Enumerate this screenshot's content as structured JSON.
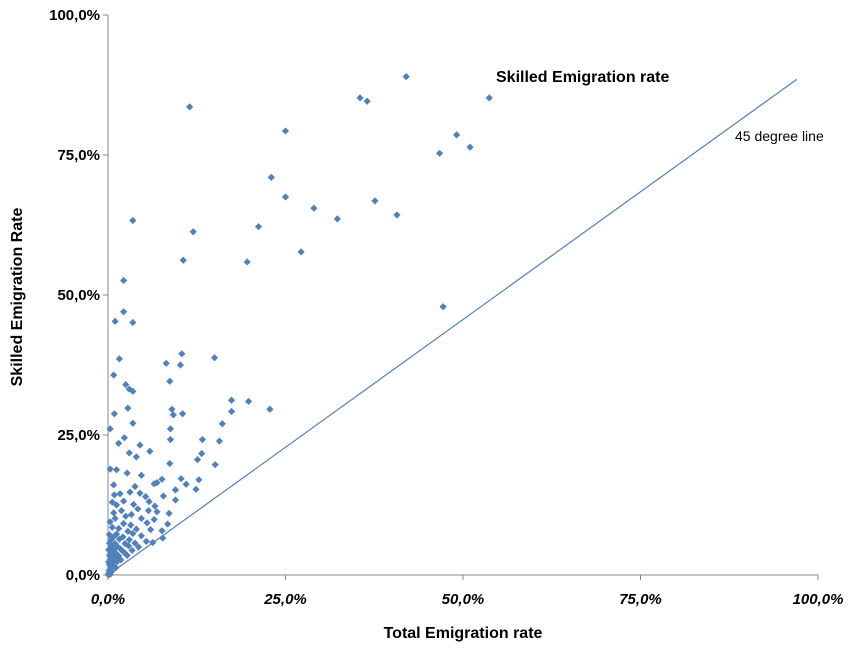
{
  "chart_data": {
    "type": "scatter",
    "title": "",
    "xlabel": "Total Emigration rate",
    "ylabel": "Skilled Emigration Rate",
    "xlim": [
      0,
      100
    ],
    "ylim": [
      0,
      100
    ],
    "x_ticks": [
      0,
      25,
      50,
      75,
      100
    ],
    "y_ticks": [
      0,
      25,
      50,
      75,
      100
    ],
    "x_tick_labels": [
      "0,0%",
      "25,0%",
      "50,0%",
      "75,0%",
      "100,0%"
    ],
    "y_tick_labels": [
      "0,0%",
      "25,0%",
      "50,0%",
      "75,0%",
      "100,0%"
    ],
    "grid": false,
    "marker_color": "#4f81bd",
    "line_color": "#4f81bd",
    "reference_line": {
      "label": "45 degree line",
      "points": [
        [
          0,
          0
        ],
        [
          97,
          88.5
        ]
      ]
    },
    "annotations": [
      {
        "text": "Skilled Emigration rate",
        "bold": true
      },
      {
        "text": "45 degree line",
        "bold": false
      }
    ],
    "series": [
      {
        "points": [
          [
            11.5,
            83.6
          ],
          [
            42,
            89
          ],
          [
            35.5,
            85.2
          ],
          [
            36.5,
            84.6
          ],
          [
            53.7,
            85.2
          ],
          [
            25,
            79.3
          ],
          [
            49.1,
            78.6
          ],
          [
            51,
            76.4
          ],
          [
            46.7,
            75.3
          ],
          [
            23,
            71
          ],
          [
            25,
            67.5
          ],
          [
            29,
            65.5
          ],
          [
            37.6,
            66.8
          ],
          [
            32.3,
            63.6
          ],
          [
            40.7,
            64.3
          ],
          [
            3.5,
            63.3
          ],
          [
            12,
            61.3
          ],
          [
            21.2,
            62.2
          ],
          [
            27.2,
            57.7
          ],
          [
            10.6,
            56.2
          ],
          [
            19.6,
            55.9
          ],
          [
            2.2,
            52.6
          ],
          [
            47.2,
            47.9
          ],
          [
            2.2,
            47
          ],
          [
            1,
            45.3
          ],
          [
            3.5,
            45.1
          ],
          [
            10.4,
            39.5
          ],
          [
            15,
            38.8
          ],
          [
            1.6,
            38.6
          ],
          [
            8.2,
            37.8
          ],
          [
            10.2,
            37.5
          ],
          [
            0.8,
            35.7
          ],
          [
            2.5,
            34
          ],
          [
            3,
            33.2
          ],
          [
            3.5,
            32.8
          ],
          [
            8.7,
            34.6
          ],
          [
            17.4,
            31.2
          ],
          [
            19.8,
            31
          ],
          [
            0.9,
            28.8
          ],
          [
            2.8,
            29.8
          ],
          [
            9,
            29.6
          ],
          [
            10.5,
            28.8
          ],
          [
            17.4,
            29.2
          ],
          [
            22.8,
            29.6
          ],
          [
            9.2,
            28.6
          ],
          [
            3.5,
            27.1
          ],
          [
            0.3,
            26.1
          ],
          [
            8.8,
            26.1
          ],
          [
            16.1,
            27
          ],
          [
            2.3,
            24.5
          ],
          [
            8.8,
            24.2
          ],
          [
            13.3,
            24.2
          ],
          [
            15.7,
            23.9
          ],
          [
            1.5,
            23.5
          ],
          [
            4.5,
            23.2
          ],
          [
            13.2,
            21.7
          ],
          [
            3,
            21.8
          ],
          [
            5.9,
            22.1
          ],
          [
            12.6,
            20.6
          ],
          [
            4,
            21.1
          ],
          [
            15.1,
            19.7
          ],
          [
            0.3,
            18.9
          ],
          [
            1.2,
            18.8
          ],
          [
            8.7,
            19.9
          ],
          [
            2.7,
            18.2
          ],
          [
            4.7,
            17.8
          ],
          [
            7.6,
            17.1
          ],
          [
            6.5,
            16.3
          ],
          [
            10.3,
            17.2
          ],
          [
            11,
            16.2
          ],
          [
            12.8,
            17
          ],
          [
            6.9,
            16.5
          ],
          [
            0.8,
            16.1
          ],
          [
            3.8,
            15.8
          ],
          [
            12.4,
            15.3
          ],
          [
            9.5,
            15.2
          ],
          [
            3.1,
            14.8
          ],
          [
            4.5,
            14.6
          ],
          [
            1.7,
            14.5
          ],
          [
            0.9,
            14.3
          ],
          [
            5.3,
            14
          ],
          [
            7.8,
            14.1
          ],
          [
            0.6,
            13
          ],
          [
            2.2,
            13.2
          ],
          [
            5.8,
            13.1
          ],
          [
            9.5,
            13.4
          ],
          [
            1.2,
            12.5
          ],
          [
            3.6,
            12.6
          ],
          [
            6.6,
            12.3
          ],
          [
            4.2,
            11.8
          ],
          [
            1.9,
            11.5
          ],
          [
            0.8,
            11.1
          ],
          [
            5.7,
            11.5
          ],
          [
            6.9,
            11.3
          ],
          [
            8.6,
            11
          ],
          [
            3.3,
            10.8
          ],
          [
            2.5,
            10.5
          ],
          [
            1,
            10.1
          ],
          [
            4.7,
            10.1
          ],
          [
            6.5,
            9.9
          ],
          [
            0.3,
            9.5
          ],
          [
            2.2,
            9.2
          ],
          [
            5.5,
            9.3
          ],
          [
            8.4,
            9.1
          ],
          [
            3.2,
            8.9
          ],
          [
            0.6,
            8.5
          ],
          [
            1.5,
            8.3
          ],
          [
            4,
            8.2
          ],
          [
            6,
            8.1
          ],
          [
            2.8,
            7.8
          ],
          [
            7.6,
            7.9
          ],
          [
            0.2,
            7.2
          ],
          [
            1.2,
            7.3
          ],
          [
            3.5,
            7.4
          ],
          [
            0.8,
            6.8
          ],
          [
            2.1,
            6.8
          ],
          [
            4.7,
            7
          ],
          [
            7.7,
            6.6
          ],
          [
            0.4,
            6.2
          ],
          [
            1.6,
            6.4
          ],
          [
            3,
            6.3
          ],
          [
            5.4,
            6
          ],
          [
            0.2,
            5.7
          ],
          [
            1,
            5.6
          ],
          [
            2.4,
            5.6
          ],
          [
            3.8,
            5.7
          ],
          [
            6.3,
            5.8
          ],
          [
            0.5,
            5
          ],
          [
            1.3,
            5.1
          ],
          [
            2.9,
            5.2
          ],
          [
            4.3,
            5
          ],
          [
            0.1,
            4.5
          ],
          [
            0.8,
            4.5
          ],
          [
            1.8,
            4.6
          ],
          [
            3.4,
            4.4
          ],
          [
            0.4,
            4
          ],
          [
            1.1,
            3.9
          ],
          [
            2.3,
            4
          ],
          [
            0.2,
            3.5
          ],
          [
            0.7,
            3.3
          ],
          [
            1.5,
            3.4
          ],
          [
            2.7,
            3.5
          ],
          [
            0.3,
            2.8
          ],
          [
            1,
            2.9
          ],
          [
            1.8,
            2.7
          ],
          [
            0.1,
            2.3
          ],
          [
            0.6,
            2.2
          ],
          [
            1.3,
            2.4
          ],
          [
            0.2,
            1.8
          ],
          [
            0.8,
            1.7
          ],
          [
            0.4,
            1.2
          ],
          [
            1.1,
            1.3
          ],
          [
            0.15,
            0.8
          ],
          [
            0.5,
            0.6
          ],
          [
            0.1,
            0.3
          ],
          [
            0.3,
            0.1
          ],
          [
            0.05,
            0.05
          ]
        ]
      }
    ]
  }
}
